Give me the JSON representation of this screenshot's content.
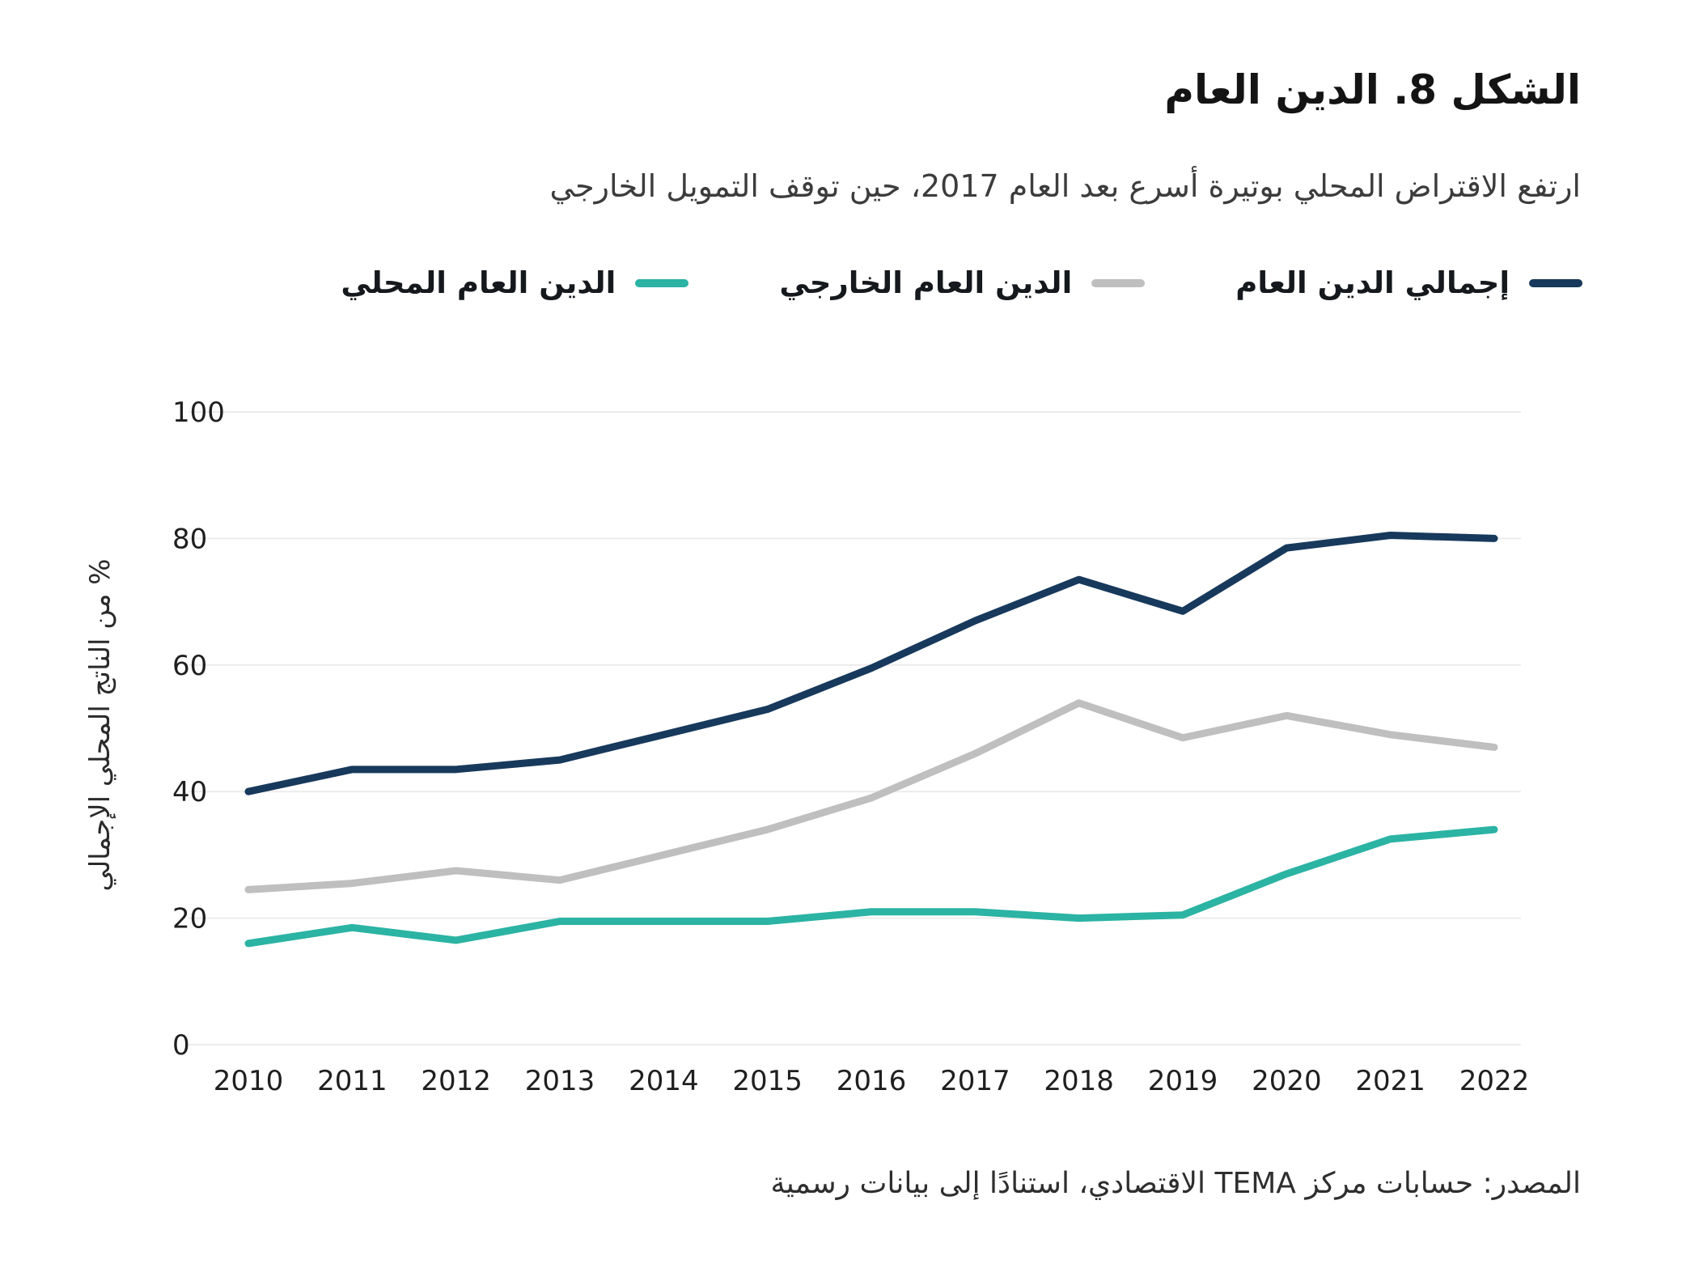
{
  "title": "الشكل 8. الدين العام",
  "subtitle": "ارتفع الاقتراض المحلي بوتيرة أسرع بعد العام 2017، حين توقف التمويل الخارجي",
  "source": "المصدر: حسابات مركز TEMA الاقتصادي، استنادًا إلى بيانات رسمية",
  "colors": {
    "total": "#17395C",
    "external": "#BFBFBF",
    "domestic": "#2BB3A3",
    "grid": "#ececec"
  },
  "chart_data": {
    "type": "line",
    "title": "الشكل 8. الدين العام",
    "xlabel": "",
    "ylabel": "% من الناتج المحلي الإجمالي",
    "ylim": [
      0,
      100
    ],
    "yticks": [
      0,
      20,
      40,
      60,
      80,
      100
    ],
    "grid": "horizontal",
    "legend_position": "top",
    "x": [
      2010,
      2011,
      2012,
      2013,
      2014,
      2015,
      2016,
      2017,
      2018,
      2019,
      2020,
      2021,
      2022
    ],
    "series": [
      {
        "id": "total-debt",
        "name": "إجمالي الدين العام",
        "color": "#17395C",
        "values": [
          40,
          43.5,
          43.5,
          45,
          49,
          53,
          59.5,
          67,
          73.5,
          68.5,
          78.5,
          80.5,
          80
        ]
      },
      {
        "id": "external-debt",
        "name": "الدين العام الخارجي",
        "color": "#BFBFBF",
        "values": [
          24.5,
          25.5,
          27.5,
          26,
          30,
          34,
          39,
          46,
          54,
          48.5,
          52,
          49,
          47
        ]
      },
      {
        "id": "domestic-debt",
        "name": "الدين العام المحلي",
        "color": "#2BB3A3",
        "values": [
          16,
          18.5,
          16.5,
          19.5,
          19.5,
          19.5,
          21,
          21,
          20,
          20.5,
          27,
          32.5,
          34
        ]
      }
    ]
  }
}
